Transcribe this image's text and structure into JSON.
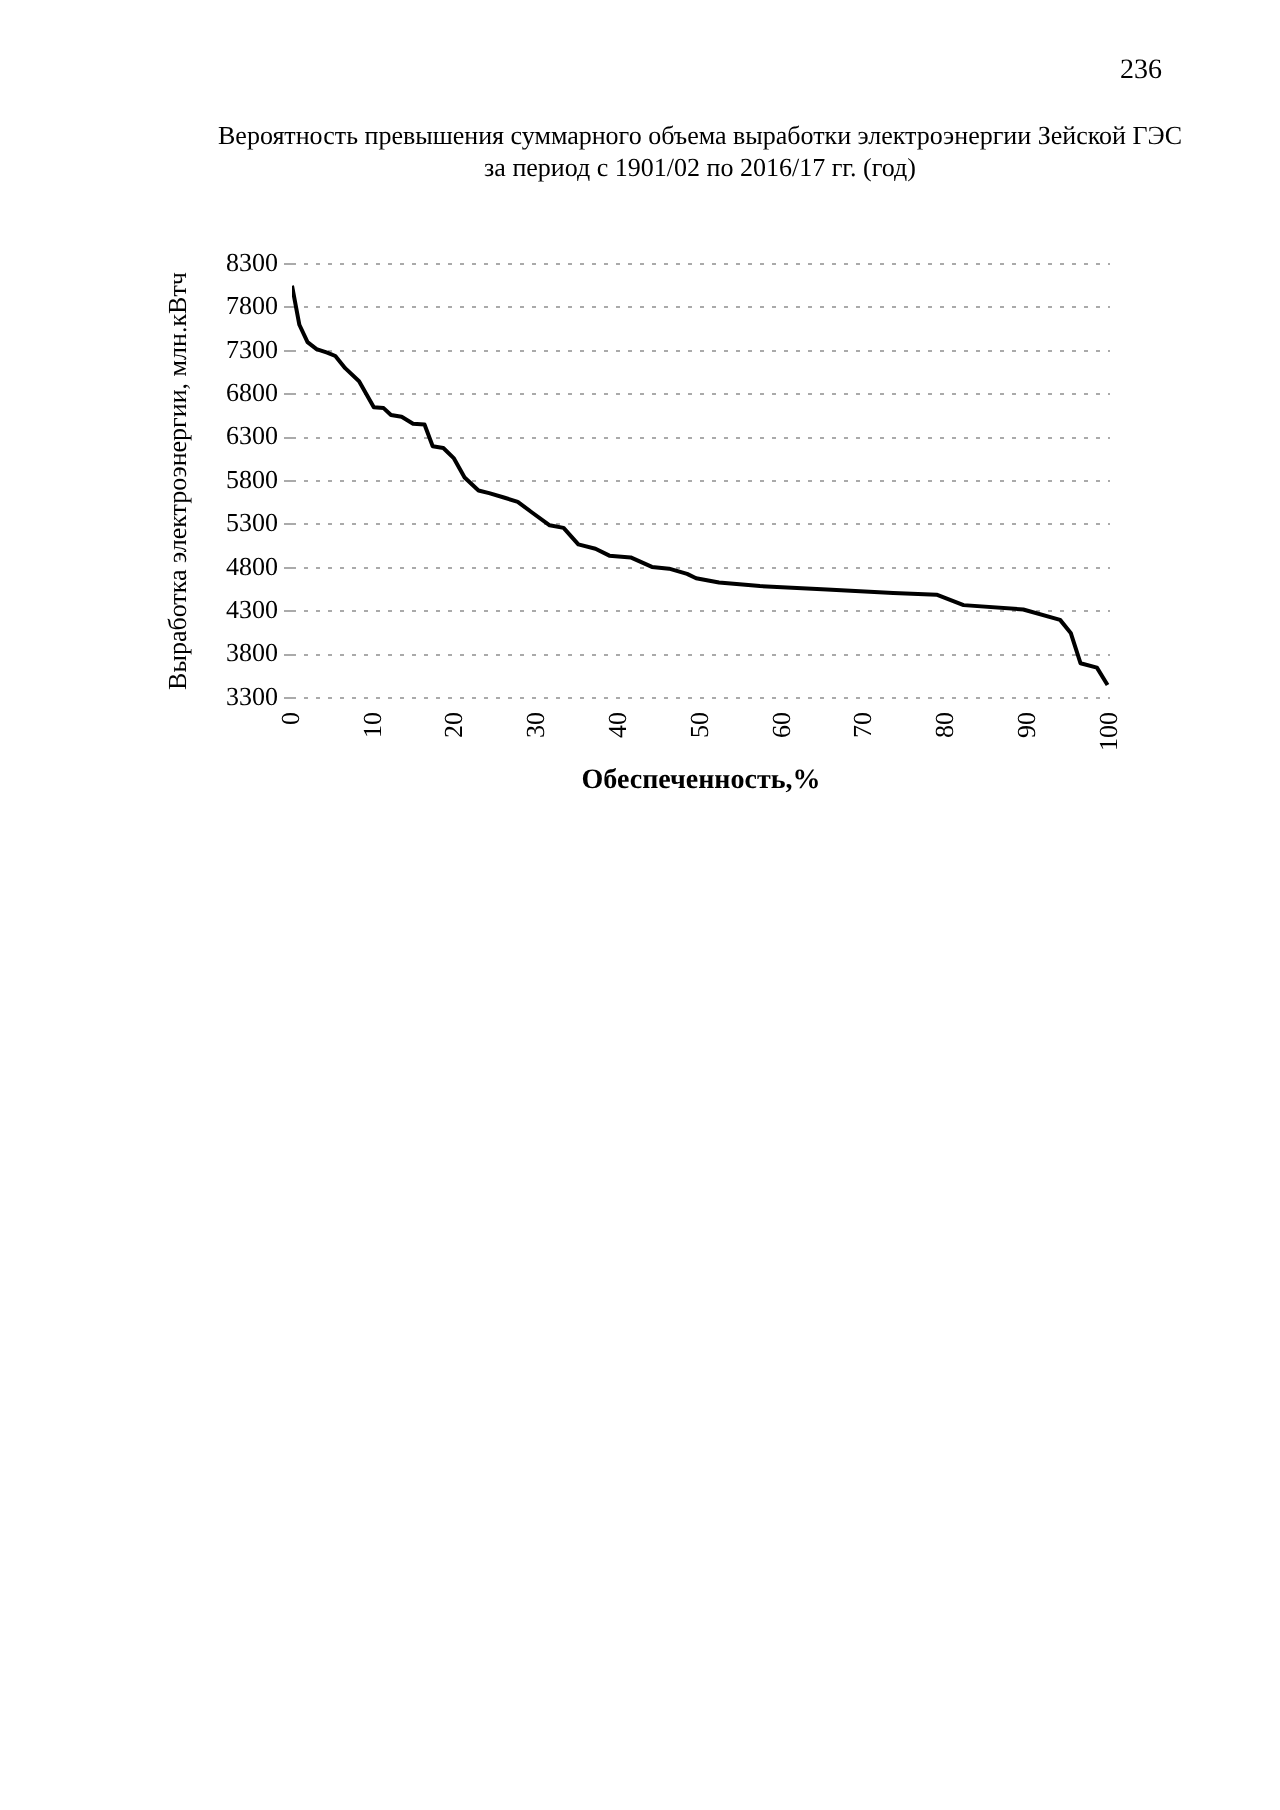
{
  "chart_data": {
    "type": "line",
    "title": "Вероятность превышения суммарного объема выработки электроэнергии Зейской ГЭС\nза период с 1901/02 по 2016/17 гг. (год)",
    "xlabel": "Обеспеченность,%",
    "ylabel": "Выработка электроэнергии, млн.кВтч",
    "annotations": [
      "236"
    ],
    "series": [
      {
        "color": "#000000",
        "x": [
          0,
          0.9,
          1.9,
          3.0,
          4.3,
          5.3,
          6.5,
          8.2,
          10,
          11.2,
          12.1,
          13.4,
          14.8,
          16.2,
          17.2,
          18.5,
          19.8,
          21.1,
          22.8,
          24.1,
          25.9,
          27.6,
          29.3,
          31.5,
          33.2,
          35.0,
          37.1,
          38.8,
          41.4,
          44.0,
          46.1,
          48.3,
          49.4,
          52.2,
          57.2,
          65.4,
          73.5,
          78.8,
          82.1,
          89.4,
          93.9,
          95.2,
          96.4,
          98.4,
          99.7
        ],
        "values": [
          8050,
          7600,
          7400,
          7320,
          7280,
          7240,
          7100,
          6950,
          6650,
          6640,
          6560,
          6540,
          6460,
          6450,
          6200,
          6180,
          6060,
          5840,
          5690,
          5660,
          5610,
          5560,
          5440,
          5290,
          5260,
          5070,
          5020,
          4940,
          4920,
          4810,
          4790,
          4730,
          4680,
          4630,
          4590,
          4550,
          4510,
          4490,
          4370,
          4320,
          4200,
          4050,
          3700,
          3650,
          3450
        ]
      }
    ],
    "xlim": [
      0,
      100
    ],
    "xticks": [
      0,
      10,
      20,
      30,
      40,
      50,
      60,
      70,
      80,
      90,
      100
    ],
    "ylim": [
      3300,
      8300
    ],
    "yticks": [
      3300,
      3800,
      4300,
      4800,
      5300,
      5800,
      6300,
      6800,
      7300,
      7800,
      8300
    ],
    "grid": "y",
    "marker": "none",
    "line_style": "solid"
  }
}
